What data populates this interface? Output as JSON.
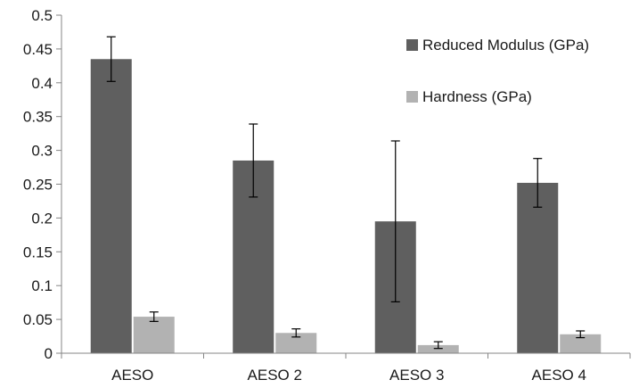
{
  "chart_data": {
    "type": "bar",
    "title": "",
    "xlabel": "",
    "ylabel": "",
    "categories": [
      "AESO",
      "AESO 2",
      "AESO 3",
      "AESO 4"
    ],
    "ylim": [
      0,
      0.5
    ],
    "yticks": [
      0,
      0.05,
      0.1,
      0.15,
      0.2,
      0.25,
      0.3,
      0.35,
      0.4,
      0.45,
      0.5
    ],
    "ytick_labels": [
      "0",
      "0.05",
      "0.1",
      "0.15",
      "0.2",
      "0.25",
      "0.3",
      "0.35",
      "0.4",
      "0.45",
      "0.5"
    ],
    "grid": false,
    "legend_position": "top-right",
    "series": [
      {
        "name": "Reduced Modulus (GPa)",
        "color": "#5f5f5f",
        "values": [
          0.435,
          0.285,
          0.195,
          0.252
        ],
        "errors": [
          0.033,
          0.054,
          0.119,
          0.036
        ]
      },
      {
        "name": "Hardness (GPa)",
        "color": "#b2b2b2",
        "values": [
          0.054,
          0.03,
          0.012,
          0.028
        ],
        "errors": [
          0.007,
          0.006,
          0.005,
          0.005
        ]
      }
    ]
  }
}
